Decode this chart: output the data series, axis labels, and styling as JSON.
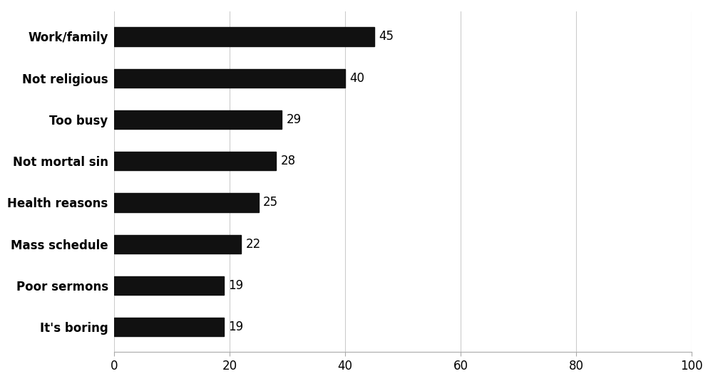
{
  "categories": [
    "It's boring",
    "Poor sermons",
    "Mass schedule",
    "Health reasons",
    "Not mortal sin",
    "Too busy",
    "Not religious",
    "Work/family"
  ],
  "values": [
    19,
    19,
    22,
    25,
    28,
    29,
    40,
    45
  ],
  "bar_color": "#111111",
  "xlim": [
    0,
    100
  ],
  "xticks": [
    0,
    20,
    40,
    60,
    80,
    100
  ],
  "bar_height": 0.45,
  "label_fontsize": 12,
  "tick_fontsize": 12,
  "value_fontsize": 12,
  "background_color": "#ffffff",
  "grid_color": "#cccccc",
  "label_fontweight": "bold"
}
